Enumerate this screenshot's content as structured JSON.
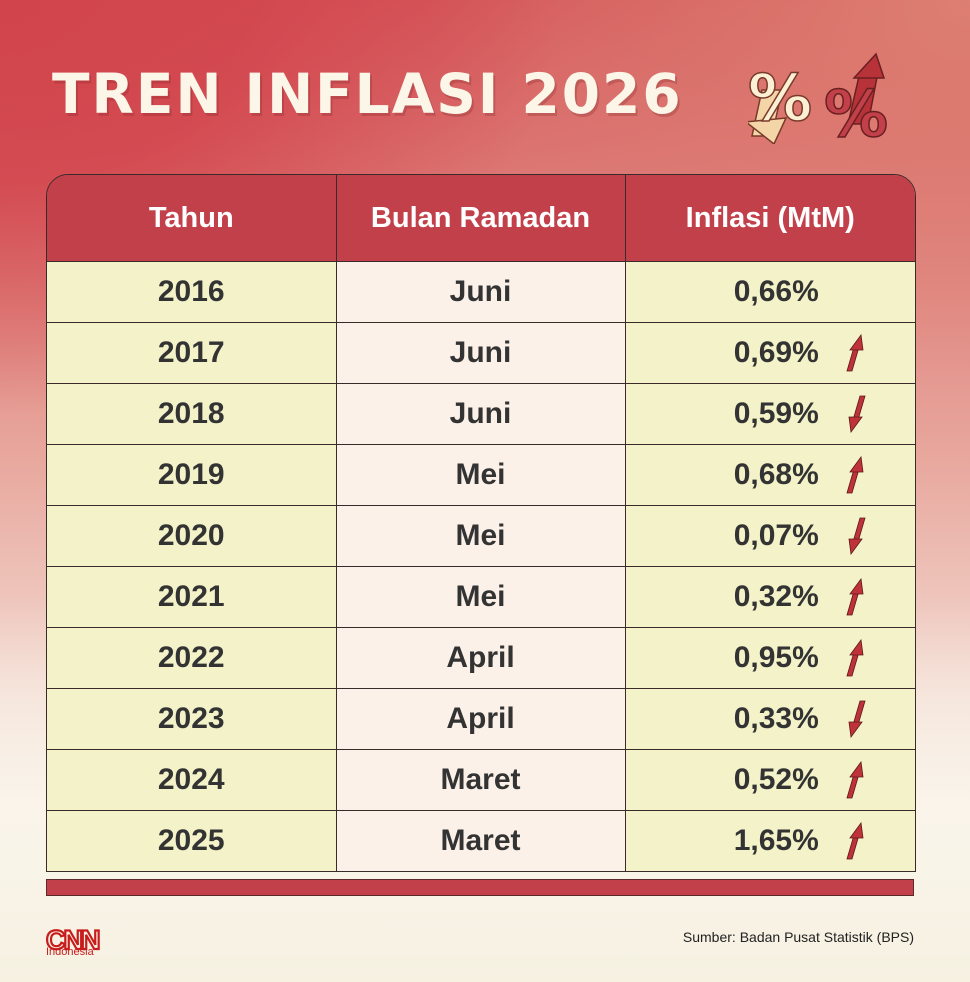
{
  "title": "TREN INFLASI 2026",
  "colors": {
    "header_red": "#c2404a",
    "row_cream": "#f3f2c8",
    "row_month": "#fbf1e8",
    "arrow_red": "#c0323a",
    "title_text": "#fbf6e8"
  },
  "title_icons": [
    "percent-down-icon",
    "percent-up-icon"
  ],
  "chart_data": {
    "type": "table",
    "columns": [
      "Tahun",
      "Bulan Ramadan",
      "Inflasi (MtM)"
    ],
    "rows": [
      {
        "year": "2016",
        "month": "Juni",
        "inflation": "0,66%",
        "trend": "none"
      },
      {
        "year": "2017",
        "month": "Juni",
        "inflation": "0,69%",
        "trend": "up"
      },
      {
        "year": "2018",
        "month": "Juni",
        "inflation": "0,59%",
        "trend": "down"
      },
      {
        "year": "2019",
        "month": "Mei",
        "inflation": "0,68%",
        "trend": "up"
      },
      {
        "year": "2020",
        "month": "Mei",
        "inflation": "0,07%",
        "trend": "down"
      },
      {
        "year": "2021",
        "month": "Mei",
        "inflation": "0,32%",
        "trend": "up"
      },
      {
        "year": "2022",
        "month": "April",
        "inflation": "0,95%",
        "trend": "up"
      },
      {
        "year": "2023",
        "month": "April",
        "inflation": "0,33%",
        "trend": "down"
      },
      {
        "year": "2024",
        "month": "Maret",
        "inflation": "0,52%",
        "trend": "up"
      },
      {
        "year": "2025",
        "month": "Maret",
        "inflation": "1,65%",
        "trend": "up"
      }
    ]
  },
  "footer": {
    "logo_text": "CNN",
    "logo_sub": "Indonesia",
    "source": "Sumber: Badan Pusat Statistik (BPS)"
  }
}
